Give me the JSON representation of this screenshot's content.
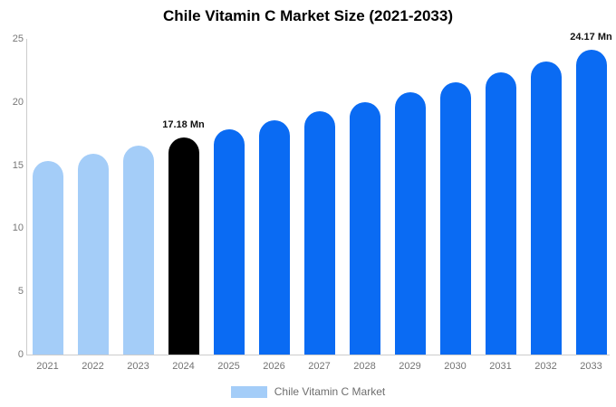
{
  "chart_data": {
    "type": "bar",
    "title": "Chile Vitamin C Market Size (2021-2033)",
    "categories": [
      "2021",
      "2022",
      "2023",
      "2024",
      "2025",
      "2026",
      "2027",
      "2028",
      "2029",
      "2030",
      "2031",
      "2032",
      "2033"
    ],
    "values": [
      15.33,
      15.92,
      16.54,
      17.18,
      17.84,
      18.53,
      19.24,
      19.98,
      20.75,
      21.54,
      22.37,
      23.23,
      24.17
    ],
    "value_unit": "Mn",
    "series_name": "Chile Vitamin C Market",
    "xlabel": "",
    "ylabel": "",
    "ylim": [
      0,
      25
    ],
    "yticks": [
      0,
      5,
      10,
      15,
      20,
      25
    ],
    "grid": false,
    "bar_color_roles": [
      "past",
      "past",
      "past",
      "current",
      "forecast",
      "forecast",
      "forecast",
      "forecast",
      "forecast",
      "forecast",
      "forecast",
      "forecast",
      "forecast"
    ],
    "role_colors": {
      "past": "#A4CDF8",
      "current": "#000000",
      "forecast": "#0A6BF3"
    },
    "annotations": [
      {
        "category": "2024",
        "text": "17.18 Mn"
      },
      {
        "category": "2033",
        "text": "24.17 Mn"
      }
    ],
    "legend": {
      "position": "bottom",
      "label": "Chile Vitamin C Market",
      "swatch_color": "#A4CDF8"
    },
    "axis_line_color": "#cccccc",
    "tick_label_color": "#777777",
    "title_color": "#000000",
    "annotation_color": "#111111",
    "background_color": "#ffffff"
  }
}
